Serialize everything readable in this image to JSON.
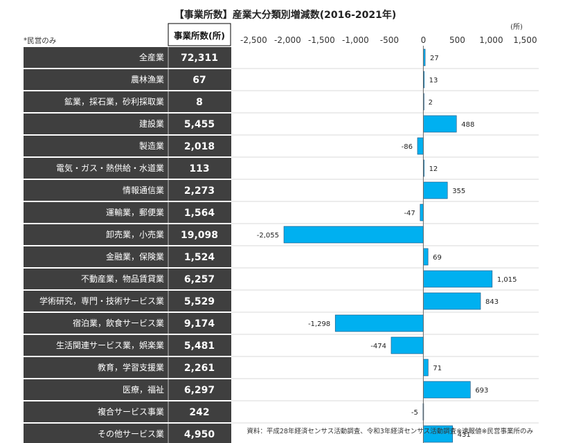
{
  "chart_data": {
    "type": "bar",
    "orientation": "horizontal",
    "title": "【事業所数】産業大分類別増減数(2016-2021年)",
    "unit_label": "(所)",
    "table_header": "事業所数(所)",
    "note": "*民営のみ",
    "source": "資料：平成28年経済センサス活動調査、令和3年経済センサス活動調査※速報値※民営事業所のみ",
    "x_ticks": [
      "-2,500",
      "-2,000",
      "-1,500",
      "-1,000",
      "-500",
      "0",
      "500",
      "1,000",
      "1,500"
    ],
    "xlim": [
      -2800,
      1700
    ],
    "bar_color": "#00b0f0",
    "row_color": "#3f3f3f",
    "categories": [
      "全産業",
      "農林漁業",
      "鉱業，採石業，砂利採取業",
      "建設業",
      "製造業",
      "電気・ガス・熱供給・水道業",
      "情報通信業",
      "運輸業，郵便業",
      "卸売業，小売業",
      "金融業，保険業",
      "不動産業，物品賃貸業",
      "学術研究，専門・技術サービス業",
      "宿泊業，飲食サービス業",
      "生活関連サービス業，娯楽業",
      "教育，学習支援業",
      "医療，福祉",
      "複合サービス事業",
      "その他サービス業"
    ],
    "counts": [
      "72,311",
      "67",
      "8",
      "5,455",
      "2,018",
      "113",
      "2,273",
      "1,564",
      "19,098",
      "1,524",
      "6,257",
      "5,529",
      "9,174",
      "5,481",
      "2,261",
      "6,297",
      "242",
      "4,950"
    ],
    "values": [
      27,
      13,
      2,
      488,
      -86,
      12,
      355,
      -47,
      -2055,
      69,
      1015,
      843,
      -1298,
      -474,
      71,
      693,
      -5,
      431
    ],
    "value_labels": [
      "27",
      "13",
      "2",
      "488",
      "-86",
      "12",
      "355",
      "-47",
      "-2,055",
      "69",
      "1,015",
      "843",
      "-1,298",
      "-474",
      "71",
      "693",
      "-5",
      "431"
    ]
  }
}
